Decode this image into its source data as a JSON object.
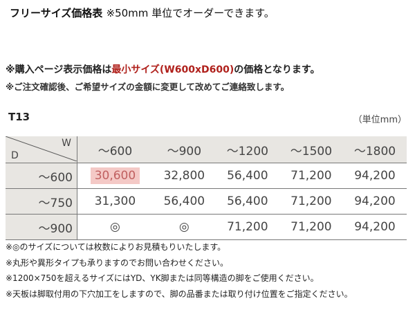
{
  "title": {
    "main": "フリーサイズ価格表",
    "sub": "※50mm 単位でオーダーできます。"
  },
  "note1": {
    "pre": "※購入ページ表示価格は",
    "red": "最小サイズ(W600xD600)",
    "post": "の価格となります。"
  },
  "note2": "※ご注文確認後、ご希望サイズの金額に変更して改めてご連絡致します。",
  "model": "T13",
  "unit": "（単位mm）",
  "table": {
    "corner_w": "W",
    "corner_d": "D",
    "columns": [
      "～600",
      "～900",
      "～1200",
      "～1500",
      "～1800"
    ],
    "rows": [
      {
        "label": "～600",
        "cells": [
          "30,600",
          "32,800",
          "56,400",
          "71,200",
          "94,200"
        ]
      },
      {
        "label": "～750",
        "cells": [
          "31,300",
          "56,400",
          "56,400",
          "71,200",
          "94,200"
        ]
      },
      {
        "label": "～900",
        "cells": [
          "◎",
          "◎",
          "71,200",
          "71,200",
          "94,200"
        ]
      }
    ],
    "highlight_color": "#f4c9c6"
  },
  "notes": [
    "※◎のサイズについては枚数によりお見積もりいたします。",
    "※丸形や異形タイプも承りますのでお問い合わせください。",
    "※1200×750を超えるサイズにはYD、YK脚または同等構造の脚をご使用ください。",
    "※天板は脚取付用の下穴加工をしますので、脚の品番または取り付け位置をご指定ください。"
  ]
}
